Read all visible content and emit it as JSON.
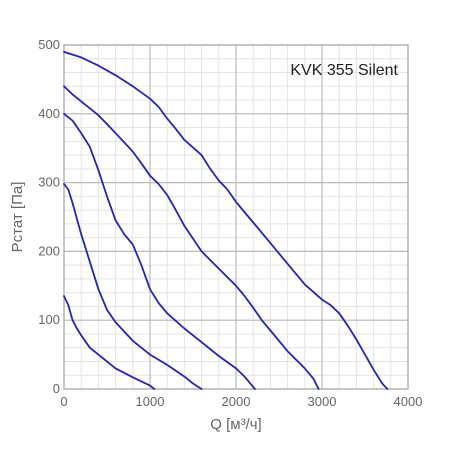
{
  "chart_data": {
    "type": "line",
    "title": "KVK 355 Silent",
    "xlabel": "Q [м³/ч]",
    "ylabel": "Pстат [Па]",
    "xlim": [
      0,
      4000
    ],
    "ylim": [
      0,
      500
    ],
    "x_ticks": [
      "0",
      "1000",
      "2000",
      "3000",
      "4000"
    ],
    "y_ticks": [
      "0",
      "100",
      "200",
      "300",
      "400",
      "500"
    ],
    "grid": true,
    "minor_grid": true,
    "colors": {
      "curve": "#2525b5",
      "major_grid": "#bbbbbb",
      "minor_grid": "#e4e4e4",
      "frame": "#aaaaaa"
    },
    "series": [
      {
        "values": [
          [
            0,
            490
          ],
          [
            200,
            482
          ],
          [
            400,
            470
          ],
          [
            600,
            456
          ],
          [
            800,
            440
          ],
          [
            1000,
            422
          ],
          [
            1100,
            410
          ],
          [
            1200,
            393
          ],
          [
            1300,
            378
          ],
          [
            1400,
            362
          ],
          [
            1600,
            340
          ],
          [
            1700,
            320
          ],
          [
            1800,
            303
          ],
          [
            1900,
            290
          ],
          [
            2000,
            272
          ],
          [
            2200,
            242
          ],
          [
            2400,
            212
          ],
          [
            2600,
            182
          ],
          [
            2800,
            152
          ],
          [
            3000,
            130
          ],
          [
            3100,
            122
          ],
          [
            3200,
            110
          ],
          [
            3300,
            92
          ],
          [
            3400,
            72
          ],
          [
            3500,
            50
          ],
          [
            3600,
            28
          ],
          [
            3700,
            8
          ],
          [
            3760,
            0
          ]
        ]
      },
      {
        "values": [
          [
            0,
            440
          ],
          [
            100,
            428
          ],
          [
            200,
            418
          ],
          [
            400,
            398
          ],
          [
            600,
            372
          ],
          [
            800,
            345
          ],
          [
            900,
            328
          ],
          [
            1000,
            310
          ],
          [
            1100,
            298
          ],
          [
            1200,
            282
          ],
          [
            1300,
            260
          ],
          [
            1400,
            237
          ],
          [
            1600,
            200
          ],
          [
            1800,
            175
          ],
          [
            2000,
            150
          ],
          [
            2100,
            135
          ],
          [
            2200,
            118
          ],
          [
            2300,
            100
          ],
          [
            2400,
            85
          ],
          [
            2600,
            55
          ],
          [
            2800,
            30
          ],
          [
            2900,
            15
          ],
          [
            2960,
            0
          ]
        ]
      },
      {
        "values": [
          [
            0,
            400
          ],
          [
            100,
            390
          ],
          [
            200,
            372
          ],
          [
            300,
            352
          ],
          [
            400,
            318
          ],
          [
            500,
            280
          ],
          [
            600,
            245
          ],
          [
            700,
            225
          ],
          [
            800,
            210
          ],
          [
            900,
            180
          ],
          [
            1000,
            145
          ],
          [
            1100,
            125
          ],
          [
            1200,
            110
          ],
          [
            1400,
            88
          ],
          [
            1600,
            68
          ],
          [
            1800,
            48
          ],
          [
            2000,
            30
          ],
          [
            2100,
            18
          ],
          [
            2220,
            0
          ]
        ]
      },
      {
        "values": [
          [
            0,
            298
          ],
          [
            50,
            290
          ],
          [
            100,
            270
          ],
          [
            200,
            225
          ],
          [
            300,
            185
          ],
          [
            400,
            145
          ],
          [
            500,
            115
          ],
          [
            600,
            97
          ],
          [
            800,
            70
          ],
          [
            1000,
            50
          ],
          [
            1200,
            35
          ],
          [
            1400,
            18
          ],
          [
            1500,
            8
          ],
          [
            1600,
            0
          ]
        ]
      },
      {
        "values": [
          [
            0,
            135
          ],
          [
            50,
            122
          ],
          [
            100,
            100
          ],
          [
            150,
            88
          ],
          [
            200,
            78
          ],
          [
            300,
            60
          ],
          [
            400,
            50
          ],
          [
            600,
            30
          ],
          [
            800,
            17
          ],
          [
            1000,
            5
          ],
          [
            1050,
            0
          ]
        ]
      }
    ]
  }
}
